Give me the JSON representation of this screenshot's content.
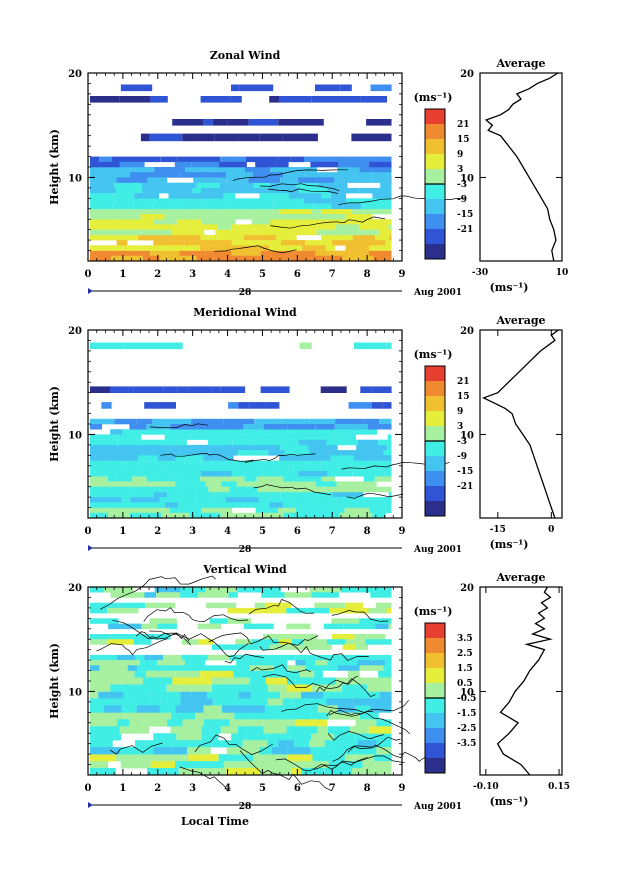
{
  "chart_data": [
    {
      "type": "heatmap",
      "title": "Zonal Wind",
      "ylabel": "Height (km)",
      "x_ticks": [
        "0",
        "1",
        "2",
        "3",
        "4",
        "5",
        "6",
        "7",
        "8",
        "9"
      ],
      "y_ticks": [
        "20",
        "10"
      ],
      "ylim": [
        2,
        20
      ],
      "xlim": [
        0,
        9
      ],
      "date_label": "Aug 2001",
      "day_marker": "28",
      "colorbar": {
        "unit_label": "(ms⁻¹)",
        "ticks": [
          "21",
          "15",
          "9",
          "3",
          "-3",
          "-9",
          "-15",
          "-21"
        ],
        "range": [
          -24,
          24
        ]
      },
      "bands": [
        {
          "y0": 2.0,
          "y1": 3.0,
          "value": 15
        },
        {
          "y0": 3.0,
          "y1": 4.5,
          "value": 9
        },
        {
          "y0": 4.5,
          "y1": 6.0,
          "value": 6
        },
        {
          "y0": 6.0,
          "y1": 7.0,
          "value": 3
        },
        {
          "y0": 7.0,
          "y1": 8.0,
          "value": -3
        },
        {
          "y0": 8.0,
          "y1": 9.5,
          "value": -6
        },
        {
          "y0": 9.5,
          "y1": 11.0,
          "value": -9
        },
        {
          "y0": 11.0,
          "y1": 12.0,
          "value": -15
        },
        {
          "y0": 13.5,
          "y1": 14.2,
          "value": -21
        },
        {
          "y0": 15.0,
          "y1": 15.6,
          "value": -21
        },
        {
          "y0": 17.2,
          "y1": 17.8,
          "value": -18
        },
        {
          "y0": 18.3,
          "y1": 18.9,
          "value": -15
        }
      ],
      "average": {
        "title": "Average",
        "xlabel": "(ms⁻¹)",
        "x_ticks": [
          "-30",
          "10"
        ],
        "y_ticks": [
          "20",
          "10"
        ],
        "xlim": [
          -30,
          10
        ],
        "profile": [
          [
            2,
            6
          ],
          [
            3,
            5
          ],
          [
            4,
            7
          ],
          [
            5,
            6
          ],
          [
            6,
            4
          ],
          [
            7,
            3
          ],
          [
            8,
            0
          ],
          [
            9,
            -3
          ],
          [
            10,
            -6
          ],
          [
            11,
            -9
          ],
          [
            12,
            -12
          ],
          [
            13,
            -16
          ],
          [
            14,
            -20
          ],
          [
            14.5,
            -26
          ],
          [
            15,
            -24
          ],
          [
            15.5,
            -27
          ],
          [
            16,
            -20
          ],
          [
            16.5,
            -16
          ],
          [
            17,
            -14
          ],
          [
            17.5,
            -10
          ],
          [
            18,
            -12
          ],
          [
            18.5,
            -6
          ],
          [
            19,
            -2
          ],
          [
            19.5,
            4
          ],
          [
            20,
            8
          ]
        ]
      }
    },
    {
      "type": "heatmap",
      "title": "Meridional Wind",
      "ylabel": "Height (km)",
      "x_ticks": [
        "0",
        "1",
        "2",
        "3",
        "4",
        "5",
        "6",
        "7",
        "8",
        "9"
      ],
      "y_ticks": [
        "20",
        "10"
      ],
      "ylim": [
        2,
        20
      ],
      "xlim": [
        0,
        9
      ],
      "date_label": "Aug 2001",
      "day_marker": "28",
      "colorbar": {
        "unit_label": "(ms⁻¹)",
        "ticks": [
          "21",
          "15",
          "9",
          "3",
          "-3",
          "-9",
          "-15",
          "-21"
        ],
        "range": [
          -24,
          24
        ]
      },
      "bands": [
        {
          "y0": 2.0,
          "y1": 3.0,
          "value": 0
        },
        {
          "y0": 3.0,
          "y1": 4.5,
          "value": -3
        },
        {
          "y0": 4.5,
          "y1": 6.0,
          "value": 1
        },
        {
          "y0": 6.0,
          "y1": 7.5,
          "value": -3
        },
        {
          "y0": 7.5,
          "y1": 9.0,
          "value": -6
        },
        {
          "y0": 9.0,
          "y1": 10.5,
          "value": -3
        },
        {
          "y0": 10.5,
          "y1": 11.5,
          "value": -9
        },
        {
          "y0": 12.5,
          "y1": 13.1,
          "value": -15
        },
        {
          "y0": 14.0,
          "y1": 14.6,
          "value": -18
        },
        {
          "y0": 18.2,
          "y1": 18.8,
          "value": -1
        }
      ],
      "average": {
        "title": "Average",
        "xlabel": "(ms⁻¹)",
        "x_ticks": [
          "-15",
          "0"
        ],
        "y_ticks": [
          "20",
          "10"
        ],
        "xlim": [
          -20,
          3
        ],
        "profile": [
          [
            2,
            1
          ],
          [
            3,
            0
          ],
          [
            4,
            -1
          ],
          [
            5,
            -2
          ],
          [
            6,
            -3
          ],
          [
            7,
            -4
          ],
          [
            8,
            -5
          ],
          [
            9,
            -6
          ],
          [
            10,
            -8
          ],
          [
            11,
            -10
          ],
          [
            12,
            -11
          ],
          [
            12.5,
            -13
          ],
          [
            13,
            -16
          ],
          [
            13.5,
            -19
          ],
          [
            14,
            -15
          ],
          [
            15,
            -12
          ],
          [
            16,
            -9
          ],
          [
            17,
            -6
          ],
          [
            18,
            -3
          ],
          [
            18.5,
            -1
          ],
          [
            19,
            1
          ],
          [
            19.5,
            0
          ],
          [
            20,
            2
          ]
        ]
      }
    },
    {
      "type": "heatmap",
      "title": "Vertical Wind",
      "ylabel": "Height (km)",
      "xlabel": "Local Time",
      "x_ticks": [
        "0",
        "1",
        "2",
        "3",
        "4",
        "5",
        "6",
        "7",
        "8",
        "9"
      ],
      "y_ticks": [
        "20",
        "10"
      ],
      "ylim": [
        2,
        20
      ],
      "xlim": [
        0,
        9
      ],
      "date_label": "Aug 2001",
      "day_marker": "28",
      "colorbar": {
        "unit_label": "(ms⁻¹)",
        "ticks": [
          "3.5",
          "2.5",
          "1.5",
          "0.5",
          "-0.5",
          "-1.5",
          "-2.5",
          "-3.5"
        ],
        "range": [
          -4,
          4
        ]
      },
      "bands": [
        {
          "y0": 2.0,
          "y1": 4.0,
          "value": 0.2
        },
        {
          "y0": 4.0,
          "y1": 6.0,
          "value": -0.4
        },
        {
          "y0": 6.0,
          "y1": 8.0,
          "value": 0.1
        },
        {
          "y0": 8.0,
          "y1": 10.0,
          "value": -0.6
        },
        {
          "y0": 10.0,
          "y1": 12.0,
          "value": 0.2
        },
        {
          "y0": 12.0,
          "y1": 13.5,
          "value": -0.3
        },
        {
          "y0": 14.0,
          "y1": 15.5,
          "value": 0.3
        },
        {
          "y0": 16.0,
          "y1": 17.0,
          "value": -0.2
        },
        {
          "y0": 17.5,
          "y1": 18.5,
          "value": 0.2
        },
        {
          "y0": 19.0,
          "y1": 20.0,
          "value": -0.1
        }
      ],
      "average": {
        "title": "Average",
        "xlabel": "(ms⁻¹)",
        "x_ticks": [
          "-0.10",
          "0.15"
        ],
        "y_ticks": [
          "20",
          "10"
        ],
        "xlim": [
          -0.12,
          0.16
        ],
        "profile": [
          [
            2,
            0.05
          ],
          [
            3,
            0.02
          ],
          [
            4,
            -0.04
          ],
          [
            5,
            -0.06
          ],
          [
            6,
            -0.02
          ],
          [
            7,
            0.01
          ],
          [
            8,
            -0.05
          ],
          [
            9,
            -0.02
          ],
          [
            10,
            0.0
          ],
          [
            11,
            0.03
          ],
          [
            12,
            0.05
          ],
          [
            13,
            0.08
          ],
          [
            14,
            0.1
          ],
          [
            14.5,
            0.04
          ],
          [
            15,
            0.12
          ],
          [
            15.5,
            0.06
          ],
          [
            16,
            0.1
          ],
          [
            16.5,
            0.07
          ],
          [
            17,
            0.1
          ],
          [
            17.5,
            0.08
          ],
          [
            18,
            0.11
          ],
          [
            18.5,
            0.09
          ],
          [
            19,
            0.12
          ],
          [
            19.5,
            0.1
          ],
          [
            20,
            0.11
          ]
        ]
      }
    }
  ]
}
